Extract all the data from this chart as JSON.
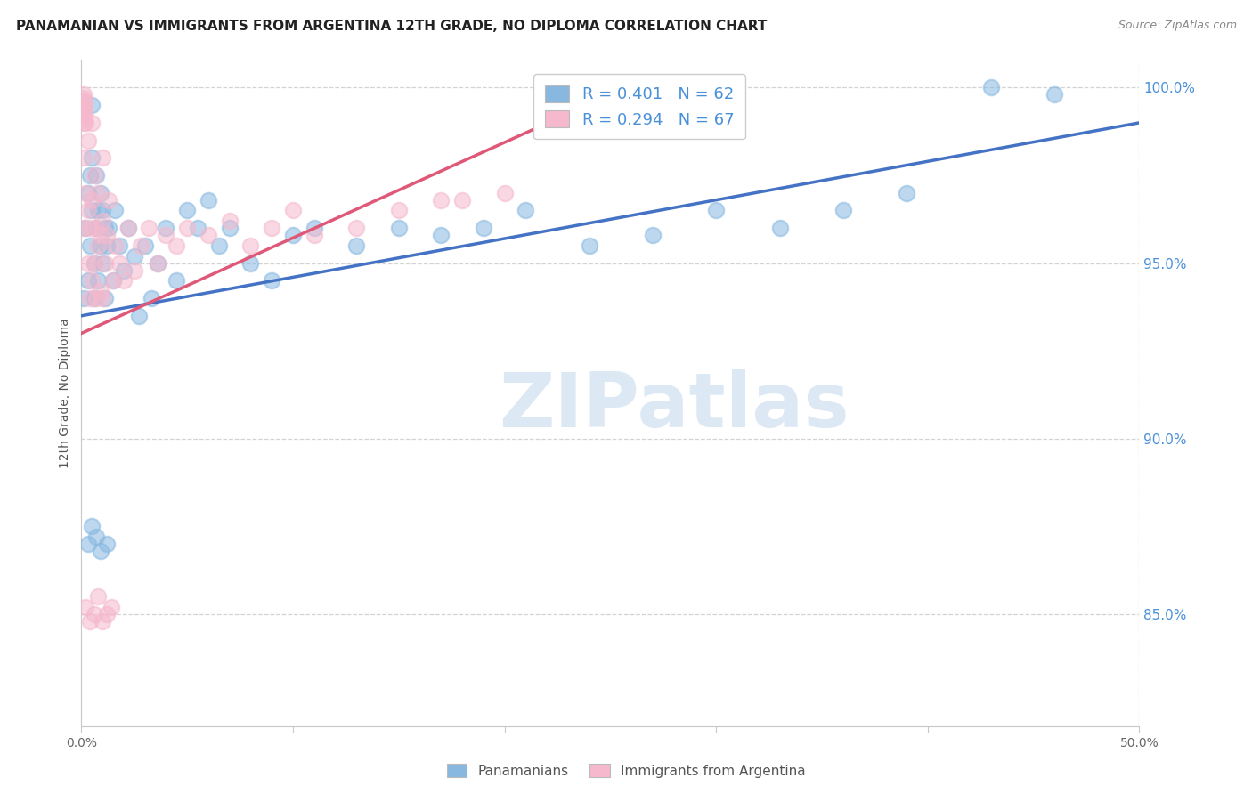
{
  "title": "PANAMANIAN VS IMMIGRANTS FROM ARGENTINA 12TH GRADE, NO DIPLOMA CORRELATION CHART",
  "source": "Source: ZipAtlas.com",
  "ylabel": "12th Grade, No Diploma",
  "legend_labels": [
    "Panamanians",
    "Immigrants from Argentina"
  ],
  "r_blue": 0.401,
  "n_blue": 62,
  "r_pink": 0.294,
  "n_pink": 67,
  "xlim": [
    0.0,
    0.5
  ],
  "ylim": [
    0.818,
    1.008
  ],
  "xtick_positions": [
    0.0,
    0.1,
    0.2,
    0.3,
    0.4,
    0.5
  ],
  "xticklabels": [
    "0.0%",
    "",
    "",
    "",
    "",
    "50.0%"
  ],
  "ytick_positions": [
    0.85,
    0.9,
    0.95,
    1.0
  ],
  "yticklabels": [
    "85.0%",
    "90.0%",
    "95.0%",
    "100.0%"
  ],
  "blue_color": "#88b8e0",
  "pink_color": "#f5b8cc",
  "blue_line_color": "#4472c4",
  "pink_line_color": "#e05878",
  "watermark_text": "ZIPatlas",
  "watermark_color": "#dde8f5",
  "background_color": "#ffffff",
  "grid_color": "#c8c8c8",
  "tick_label_color_x": "#666666",
  "tick_label_color_y": "#4a90d9",
  "blue_scatter_x": [
    0.001,
    0.002,
    0.003,
    0.003,
    0.004,
    0.004,
    0.005,
    0.005,
    0.005,
    0.006,
    0.006,
    0.007,
    0.007,
    0.008,
    0.008,
    0.009,
    0.009,
    0.01,
    0.01,
    0.011,
    0.011,
    0.012,
    0.013,
    0.015,
    0.016,
    0.018,
    0.02,
    0.022,
    0.025,
    0.027,
    0.03,
    0.033,
    0.036,
    0.04,
    0.045,
    0.05,
    0.055,
    0.06,
    0.065,
    0.07,
    0.08,
    0.09,
    0.1,
    0.11,
    0.13,
    0.15,
    0.17,
    0.19,
    0.21,
    0.24,
    0.27,
    0.3,
    0.33,
    0.36,
    0.39,
    0.003,
    0.005,
    0.007,
    0.009,
    0.012,
    0.43,
    0.46
  ],
  "blue_scatter_y": [
    0.94,
    0.96,
    0.945,
    0.97,
    0.955,
    0.975,
    0.965,
    0.98,
    0.995,
    0.95,
    0.94,
    0.96,
    0.975,
    0.945,
    0.965,
    0.955,
    0.97,
    0.95,
    0.965,
    0.94,
    0.96,
    0.955,
    0.96,
    0.945,
    0.965,
    0.955,
    0.948,
    0.96,
    0.952,
    0.935,
    0.955,
    0.94,
    0.95,
    0.96,
    0.945,
    0.965,
    0.96,
    0.968,
    0.955,
    0.96,
    0.95,
    0.945,
    0.958,
    0.96,
    0.955,
    0.96,
    0.958,
    0.96,
    0.965,
    0.955,
    0.958,
    0.965,
    0.96,
    0.965,
    0.97,
    0.87,
    0.875,
    0.872,
    0.868,
    0.87,
    1.0,
    0.998
  ],
  "pink_scatter_x": [
    0.001,
    0.001,
    0.002,
    0.002,
    0.003,
    0.003,
    0.003,
    0.004,
    0.004,
    0.005,
    0.005,
    0.005,
    0.006,
    0.006,
    0.007,
    0.007,
    0.008,
    0.008,
    0.009,
    0.009,
    0.01,
    0.01,
    0.01,
    0.011,
    0.012,
    0.013,
    0.015,
    0.016,
    0.018,
    0.02,
    0.022,
    0.025,
    0.028,
    0.032,
    0.036,
    0.04,
    0.045,
    0.05,
    0.06,
    0.07,
    0.08,
    0.09,
    0.1,
    0.11,
    0.13,
    0.15,
    0.17,
    0.002,
    0.004,
    0.006,
    0.008,
    0.01,
    0.012,
    0.014,
    0.18,
    0.2,
    0.001,
    0.001,
    0.001,
    0.001,
    0.001,
    0.001,
    0.001,
    0.001,
    0.001,
    0.001,
    0.001
  ],
  "pink_scatter_y": [
    0.96,
    0.98,
    0.97,
    0.99,
    0.95,
    0.965,
    0.985,
    0.94,
    0.96,
    0.945,
    0.968,
    0.99,
    0.95,
    0.975,
    0.94,
    0.96,
    0.955,
    0.97,
    0.942,
    0.958,
    0.94,
    0.962,
    0.98,
    0.95,
    0.958,
    0.968,
    0.945,
    0.955,
    0.95,
    0.945,
    0.96,
    0.948,
    0.955,
    0.96,
    0.95,
    0.958,
    0.955,
    0.96,
    0.958,
    0.962,
    0.955,
    0.96,
    0.965,
    0.958,
    0.96,
    0.965,
    0.968,
    0.852,
    0.848,
    0.85,
    0.855,
    0.848,
    0.85,
    0.852,
    0.968,
    0.97,
    0.998,
    0.993,
    0.996,
    0.994,
    0.997,
    0.995,
    0.992,
    0.99,
    0.996,
    0.994,
    0.991
  ],
  "blue_trend_x": [
    0.0,
    0.5
  ],
  "blue_trend_y": [
    0.935,
    0.99
  ],
  "pink_trend_x": [
    0.0,
    0.25
  ],
  "pink_trend_y": [
    0.93,
    0.998
  ]
}
